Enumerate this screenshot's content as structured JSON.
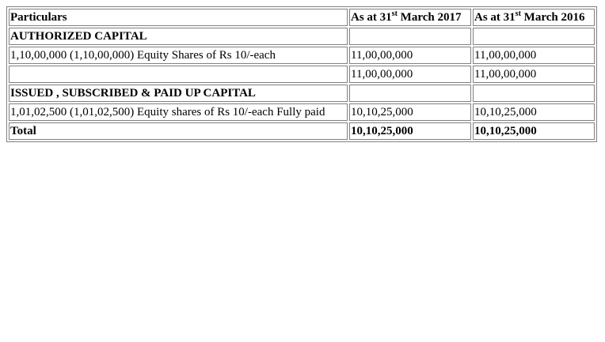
{
  "header": {
    "particulars": "Particulars",
    "col1_prefix": "As at 31",
    "col1_sup": "st",
    "col1_suffix": " March 2017",
    "col2_prefix": "As at 31",
    "col2_sup": "st",
    "col2_suffix": " March 2016"
  },
  "rows": [
    {
      "particulars": "AUTHORIZED CAPITAL",
      "y2017": "",
      "y2016": ""
    },
    {
      "particulars": "1,10,00,000 (1,10,00,000) Equity Shares of Rs 10/-each",
      "y2017": "11,00,00,000",
      "y2016": "11,00,00,000"
    },
    {
      "particulars": "",
      "y2017": "11,00,00,000",
      "y2016": "11,00,00,000"
    },
    {
      "particulars": "ISSUED , SUBSCRIBED & PAID UP CAPITAL",
      "y2017": "",
      "y2016": ""
    },
    {
      "particulars": "1,01,02,500 (1,01,02,500) Equity shares of Rs 10/-each Fully paid",
      "y2017": "10,10,25,000",
      "y2016": "10,10,25,000"
    },
    {
      "particulars": "Total",
      "y2017": "10,10,25,000",
      "y2016": "10,10,25,000"
    }
  ]
}
